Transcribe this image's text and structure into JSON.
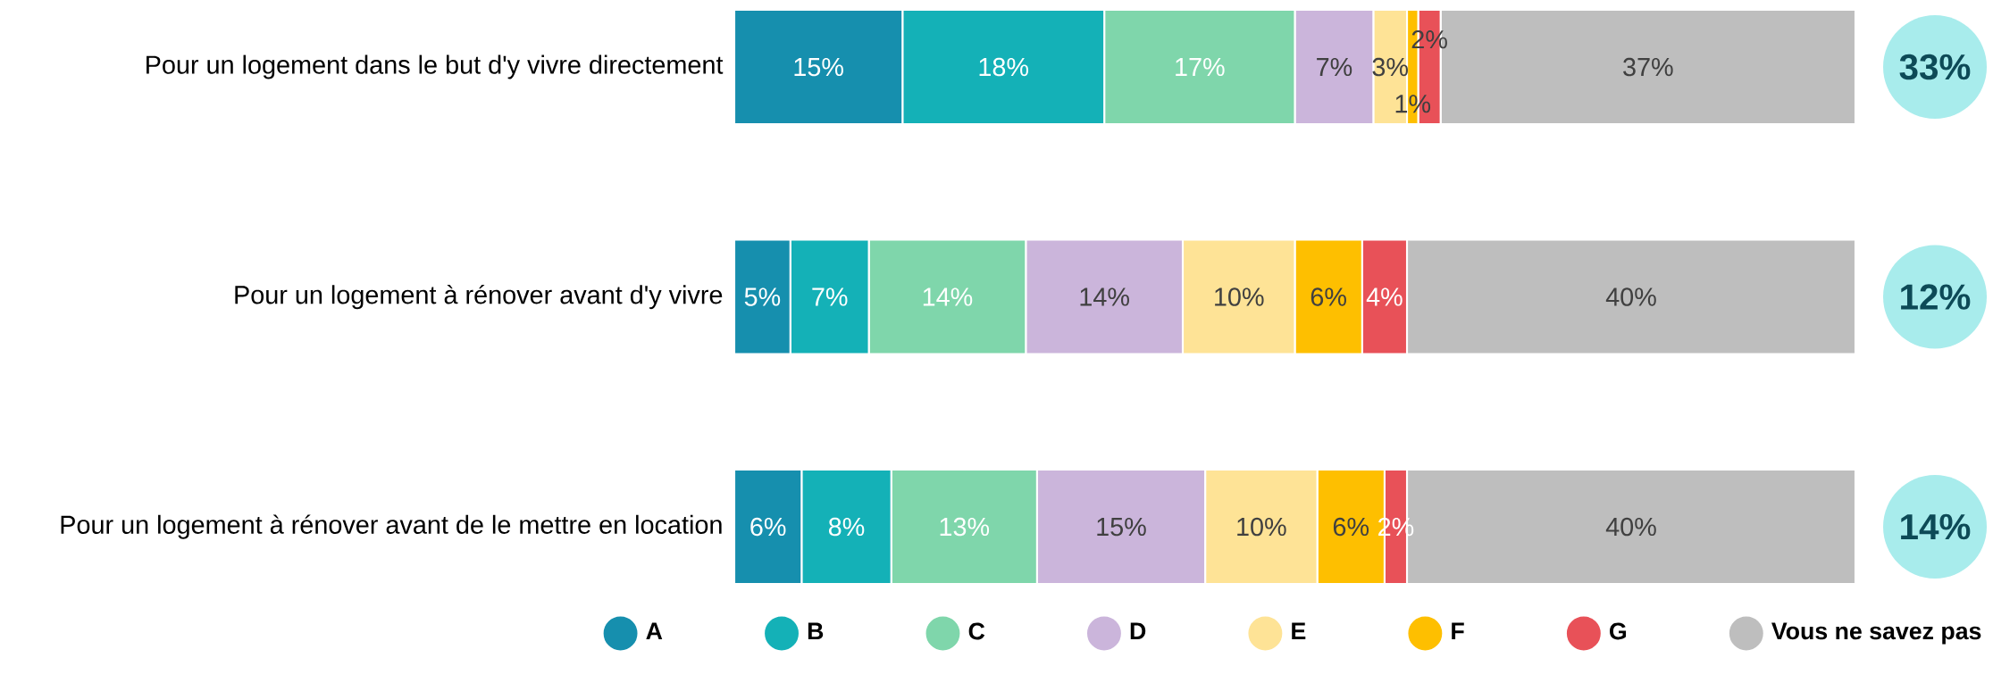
{
  "chart_data": {
    "type": "bar",
    "orientation": "horizontal",
    "stacked": true,
    "legend": "bottom",
    "categories": [
      "Pour un logement dans le but d'y vivre directement",
      "Pour un logement à rénover avant d'y vivre",
      "Pour un logement à rénover avant de le mettre en location"
    ],
    "series": [
      {
        "name": "A",
        "color": "#168fae",
        "values": [
          15,
          5,
          6
        ],
        "value_labels": [
          "15%",
          "5%",
          "6%"
        ]
      },
      {
        "name": "B",
        "color": "#14b1b7",
        "values": [
          18,
          7,
          8
        ],
        "value_labels": [
          "18%",
          "7%",
          "8%"
        ]
      },
      {
        "name": "C",
        "color": "#7fd6ab",
        "values": [
          17,
          14,
          13
        ],
        "value_labels": [
          "17%",
          "14%",
          "13%"
        ]
      },
      {
        "name": "D",
        "color": "#cbb5db",
        "values": [
          7,
          14,
          15
        ],
        "value_labels": [
          "7%",
          "14%",
          "15%"
        ]
      },
      {
        "name": "E",
        "color": "#fee396",
        "values": [
          3,
          10,
          10
        ],
        "value_labels": [
          "3%",
          "10%",
          "10%"
        ]
      },
      {
        "name": "F",
        "color": "#febf00",
        "values": [
          1,
          6,
          6
        ],
        "value_labels": [
          "1%",
          "6%",
          "6%"
        ]
      },
      {
        "name": "G",
        "color": "#e85158",
        "values": [
          2,
          4,
          2
        ],
        "value_labels": [
          "2%",
          "4%",
          "2%"
        ]
      },
      {
        "name": "Vous ne savez pas",
        "color": "#bebebe",
        "values": [
          37,
          40,
          40
        ],
        "value_labels": [
          "37%",
          "40%",
          "40%"
        ]
      }
    ],
    "annotations": [
      "33%",
      "12%",
      "14%"
    ]
  }
}
